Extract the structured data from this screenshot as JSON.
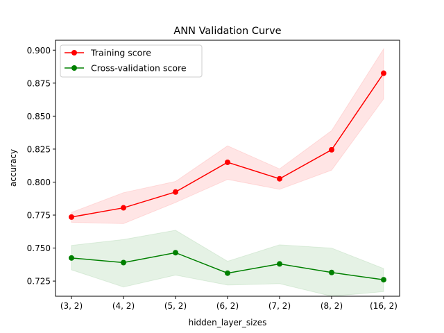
{
  "chart_data": {
    "type": "line",
    "title": "ANN Validation Curve",
    "xlabel": "hidden_layer_sizes",
    "ylabel": "accuracy",
    "categories": [
      "(3, 2)",
      "(4, 2)",
      "(5, 2)",
      "(6, 2)",
      "(7, 2)",
      "(8, 2)",
      "(16, 2)"
    ],
    "ylim": [
      0.7135,
      0.9075
    ],
    "yticks": [
      0.725,
      0.75,
      0.775,
      0.8,
      0.825,
      0.85,
      0.875,
      0.9
    ],
    "ytick_labels": [
      "0.725",
      "0.750",
      "0.775",
      "0.800",
      "0.825",
      "0.850",
      "0.875",
      "0.900"
    ],
    "grid": false,
    "legend_position": "top-left",
    "series": [
      {
        "name": "Training score",
        "color": "#ff0000",
        "values": [
          0.7735,
          0.7805,
          0.7925,
          0.815,
          0.8025,
          0.8245,
          0.8825
        ],
        "upper": [
          0.777,
          0.792,
          0.8005,
          0.8275,
          0.81,
          0.839,
          0.901
        ],
        "lower": [
          0.7695,
          0.7685,
          0.7845,
          0.802,
          0.7945,
          0.809,
          0.863
        ]
      },
      {
        "name": "Cross-validation score",
        "color": "#008000",
        "values": [
          0.7425,
          0.739,
          0.7465,
          0.731,
          0.738,
          0.7315,
          0.726
        ],
        "upper": [
          0.752,
          0.7565,
          0.7635,
          0.74,
          0.7525,
          0.75,
          0.7345
        ],
        "lower": [
          0.7335,
          0.7205,
          0.7295,
          0.722,
          0.723,
          0.7135,
          0.717
        ]
      }
    ]
  }
}
